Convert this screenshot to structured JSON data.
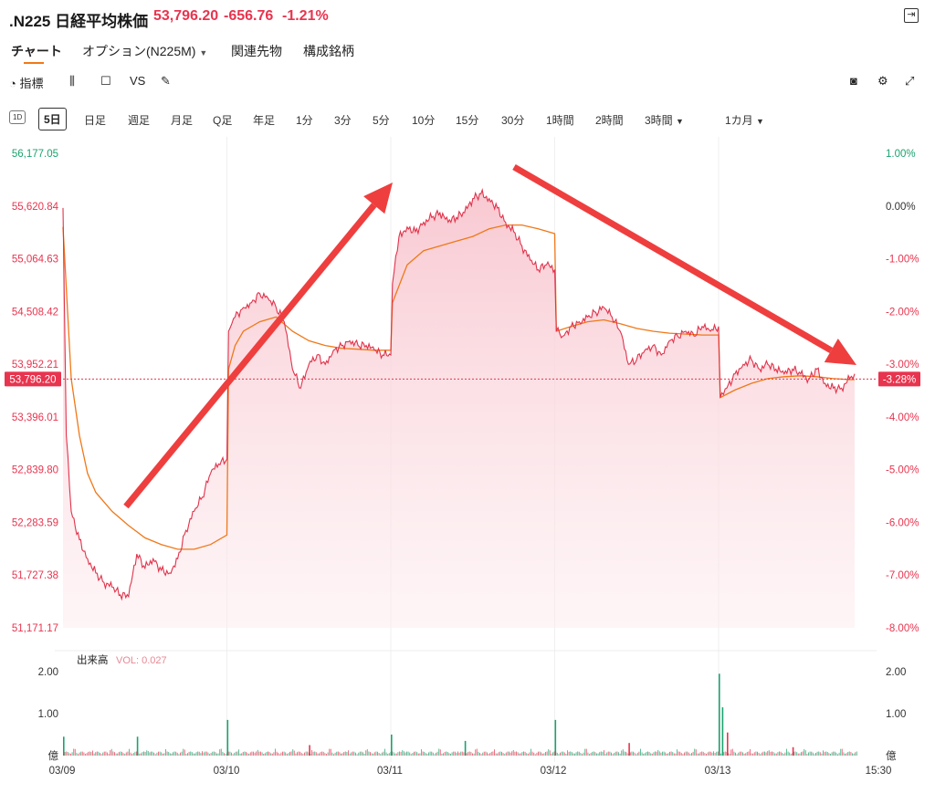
{
  "header": {
    "symbol": ".N225 日経平均株価",
    "price": "53,796.20",
    "change": "-656.76",
    "change_pct": "-1.21%"
  },
  "tabs": [
    {
      "label": "チャート"
    },
    {
      "label": "オプション(N225M)"
    },
    {
      "label": "関連先物"
    },
    {
      "label": "構成銘柄"
    }
  ],
  "toolbar": {
    "indicators_label": "指標",
    "vs_label": "VS"
  },
  "periods": {
    "oneday": "1D",
    "five_day": "5日",
    "items": [
      "日足",
      "週足",
      "月足",
      "Q足",
      "年足",
      "1分",
      "3分",
      "5分",
      "10分",
      "15分",
      "30分",
      "1時間",
      "2時間",
      "3時間",
      "1カ月"
    ]
  },
  "colors": {
    "price_line": "#e0334b",
    "area": "#f7c5cd",
    "avg_line": "#f07818",
    "up": "#1aa36f",
    "down": "#e8344e",
    "arrow": "#ef3e3e"
  },
  "chart_data": {
    "type": "line",
    "last_price_label": "53,796.20",
    "last_pct_label": "-3.28%",
    "y_ticks": [
      "56,177.05",
      "55,620.84",
      "55,064.63",
      "54,508.42",
      "53,952.21",
      "53,396.01",
      "52,839.80",
      "52,283.59",
      "51,727.38",
      "51,171.17"
    ],
    "pct_ticks": [
      "1.00%",
      "0.00%",
      "-1.00%",
      "-2.00%",
      "-3.00%",
      "-4.00%",
      "-5.00%",
      "-6.00%",
      "-7.00%",
      "-8.00%"
    ],
    "x_ticks": [
      "03/09",
      "03/10",
      "03/11",
      "03/12",
      "03/13",
      "15:30"
    ],
    "ylim": [
      51171.17,
      56177.05
    ],
    "pct_lim": [
      -8,
      1
    ],
    "last_price": 53796.2,
    "price_points": [
      [
        0,
        55600
      ],
      [
        0.02,
        53200
      ],
      [
        0.05,
        52400
      ],
      [
        0.1,
        52100
      ],
      [
        0.15,
        51900
      ],
      [
        0.2,
        51750
      ],
      [
        0.25,
        51650
      ],
      [
        0.3,
        51600
      ],
      [
        0.35,
        51520
      ],
      [
        0.4,
        51500
      ],
      [
        0.45,
        51950
      ],
      [
        0.5,
        51800
      ],
      [
        0.55,
        51900
      ],
      [
        0.6,
        51780
      ],
      [
        0.65,
        51750
      ],
      [
        0.7,
        51900
      ],
      [
        0.75,
        52200
      ],
      [
        0.8,
        52400
      ],
      [
        0.85,
        52550
      ],
      [
        0.9,
        52800
      ],
      [
        0.95,
        52900
      ],
      [
        1.0,
        52950
      ],
      [
        1.01,
        54300
      ],
      [
        1.05,
        54450
      ],
      [
        1.1,
        54550
      ],
      [
        1.15,
        54600
      ],
      [
        1.2,
        54700
      ],
      [
        1.25,
        54650
      ],
      [
        1.3,
        54550
      ],
      [
        1.35,
        54400
      ],
      [
        1.4,
        53900
      ],
      [
        1.45,
        53700
      ],
      [
        1.5,
        53950
      ],
      [
        1.55,
        54050
      ],
      [
        1.6,
        53950
      ],
      [
        1.65,
        54100
      ],
      [
        1.7,
        54150
      ],
      [
        1.75,
        54200
      ],
      [
        1.8,
        54150
      ],
      [
        1.85,
        54150
      ],
      [
        1.9,
        54100
      ],
      [
        1.95,
        54050
      ],
      [
        2.0,
        54050
      ],
      [
        2.01,
        54800
      ],
      [
        2.05,
        55300
      ],
      [
        2.1,
        55400
      ],
      [
        2.15,
        55350
      ],
      [
        2.2,
        55450
      ],
      [
        2.25,
        55500
      ],
      [
        2.3,
        55550
      ],
      [
        2.35,
        55450
      ],
      [
        2.4,
        55500
      ],
      [
        2.45,
        55550
      ],
      [
        2.5,
        55700
      ],
      [
        2.55,
        55750
      ],
      [
        2.6,
        55700
      ],
      [
        2.65,
        55600
      ],
      [
        2.7,
        55450
      ],
      [
        2.75,
        55350
      ],
      [
        2.8,
        55200
      ],
      [
        2.85,
        55050
      ],
      [
        2.9,
        54950
      ],
      [
        2.95,
        55000
      ],
      [
        3.0,
        54950
      ],
      [
        3.01,
        54300
      ],
      [
        3.05,
        54250
      ],
      [
        3.1,
        54350
      ],
      [
        3.15,
        54400
      ],
      [
        3.2,
        54450
      ],
      [
        3.25,
        54500
      ],
      [
        3.3,
        54550
      ],
      [
        3.35,
        54450
      ],
      [
        3.4,
        54300
      ],
      [
        3.45,
        53950
      ],
      [
        3.5,
        54000
      ],
      [
        3.55,
        54100
      ],
      [
        3.6,
        54150
      ],
      [
        3.65,
        54050
      ],
      [
        3.7,
        54200
      ],
      [
        3.75,
        54250
      ],
      [
        3.8,
        54300
      ],
      [
        3.85,
        54250
      ],
      [
        3.9,
        54350
      ],
      [
        3.95,
        54300
      ],
      [
        4.0,
        54350
      ],
      [
        4.01,
        53600
      ],
      [
        4.05,
        53700
      ],
      [
        4.1,
        53850
      ],
      [
        4.15,
        53950
      ],
      [
        4.2,
        54000
      ],
      [
        4.25,
        53900
      ],
      [
        4.3,
        53950
      ],
      [
        4.35,
        53900
      ],
      [
        4.4,
        53850
      ],
      [
        4.45,
        53900
      ],
      [
        4.5,
        53850
      ],
      [
        4.55,
        53800
      ],
      [
        4.6,
        53900
      ],
      [
        4.65,
        53750
      ],
      [
        4.7,
        53700
      ],
      [
        4.75,
        53700
      ],
      [
        4.8,
        53800
      ],
      [
        4.83,
        53850
      ]
    ],
    "avg_points": [
      [
        0,
        55400
      ],
      [
        0.05,
        53800
      ],
      [
        0.1,
        53200
      ],
      [
        0.15,
        52800
      ],
      [
        0.2,
        52600
      ],
      [
        0.3,
        52400
      ],
      [
        0.4,
        52250
      ],
      [
        0.5,
        52120
      ],
      [
        0.6,
        52050
      ],
      [
        0.7,
        52000
      ],
      [
        0.8,
        52000
      ],
      [
        0.9,
        52050
      ],
      [
        1.0,
        52150
      ],
      [
        1.01,
        53900
      ],
      [
        1.05,
        54150
      ],
      [
        1.1,
        54300
      ],
      [
        1.2,
        54400
      ],
      [
        1.3,
        54450
      ],
      [
        1.4,
        54300
      ],
      [
        1.5,
        54200
      ],
      [
        1.6,
        54150
      ],
      [
        1.7,
        54120
      ],
      [
        1.8,
        54110
      ],
      [
        1.9,
        54100
      ],
      [
        2.0,
        54100
      ],
      [
        2.01,
        54600
      ],
      [
        2.1,
        55000
      ],
      [
        2.2,
        55150
      ],
      [
        2.3,
        55200
      ],
      [
        2.4,
        55250
      ],
      [
        2.5,
        55300
      ],
      [
        2.6,
        55380
      ],
      [
        2.7,
        55420
      ],
      [
        2.8,
        55420
      ],
      [
        2.9,
        55380
      ],
      [
        3.0,
        55330
      ],
      [
        3.01,
        54300
      ],
      [
        3.1,
        54350
      ],
      [
        3.2,
        54400
      ],
      [
        3.3,
        54420
      ],
      [
        3.4,
        54380
      ],
      [
        3.5,
        54330
      ],
      [
        3.6,
        54300
      ],
      [
        3.7,
        54280
      ],
      [
        3.8,
        54270
      ],
      [
        3.9,
        54260
      ],
      [
        4.0,
        54260
      ],
      [
        4.01,
        53600
      ],
      [
        4.1,
        53680
      ],
      [
        4.2,
        53750
      ],
      [
        4.3,
        53800
      ],
      [
        4.4,
        53820
      ],
      [
        4.5,
        53830
      ],
      [
        4.6,
        53820
      ],
      [
        4.7,
        53800
      ],
      [
        4.8,
        53790
      ],
      [
        4.83,
        53790
      ]
    ],
    "volume_panel": {
      "label": "出来高",
      "vol_label": "VOL: 0.027",
      "y_ticks": [
        "2.00",
        "1.00",
        "億"
      ],
      "ylim": [
        0,
        2.1
      ],
      "spikes": [
        [
          0.0,
          0.45,
          "up"
        ],
        [
          0.45,
          0.45,
          "up"
        ],
        [
          1.0,
          0.85,
          "up"
        ],
        [
          1.5,
          0.25,
          "down"
        ],
        [
          2.0,
          0.5,
          "up"
        ],
        [
          2.45,
          0.35,
          "up"
        ],
        [
          3.0,
          0.85,
          "up"
        ],
        [
          3.45,
          0.3,
          "down"
        ],
        [
          4.0,
          1.95,
          "up"
        ],
        [
          4.02,
          1.15,
          "up"
        ],
        [
          4.05,
          0.55,
          "down"
        ],
        [
          4.45,
          0.2,
          "down"
        ]
      ]
    }
  }
}
